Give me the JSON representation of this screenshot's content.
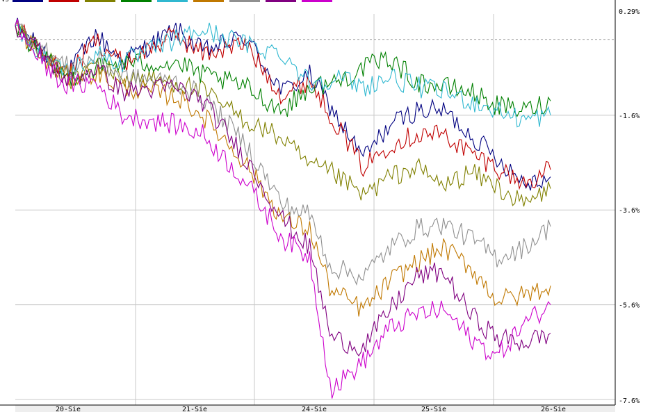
{
  "chart_data": {
    "type": "line",
    "xlabel": "",
    "ylabel": "",
    "y_ticks": [
      0.29,
      -1.6,
      -3.6,
      -5.6,
      -7.6
    ],
    "y_tick_labels": [
      "0.29%",
      "-1.6%",
      "-3.6%",
      "-5.6%",
      "-7.6%"
    ],
    "ylim": [
      -7.6,
      0.29
    ],
    "x_ticks": [
      "20-Sie",
      "21-Sie",
      "24-Sie",
      "25-Sie",
      "26-Sie"
    ],
    "reference_line": 0,
    "grid": true,
    "legend_position": "top-left",
    "legend_first_label": "VS",
    "series": [
      {
        "color": "#000080",
        "final": -2.9,
        "waypoints": [
          [
            0,
            0.3
          ],
          [
            0.05,
            -0.25
          ],
          [
            0.1,
            -0.7
          ],
          [
            0.15,
            0.1
          ],
          [
            0.2,
            -0.45
          ],
          [
            0.3,
            0.2
          ],
          [
            0.35,
            -0.25
          ],
          [
            0.43,
            0.05
          ],
          [
            0.5,
            -1.1
          ],
          [
            0.55,
            -0.75
          ],
          [
            0.59,
            -1.45
          ],
          [
            0.65,
            -2.5
          ],
          [
            0.7,
            -1.8
          ],
          [
            0.75,
            -1.5
          ],
          [
            0.8,
            -1.5
          ],
          [
            0.85,
            -2.0
          ],
          [
            0.9,
            -2.5
          ],
          [
            0.95,
            -3.0
          ],
          [
            1.0,
            -2.9
          ]
        ]
      },
      {
        "color": "#c00000",
        "final": -2.75,
        "waypoints": [
          [
            0,
            0.3
          ],
          [
            0.05,
            -0.3
          ],
          [
            0.1,
            -0.75
          ],
          [
            0.15,
            0.0
          ],
          [
            0.2,
            -0.5
          ],
          [
            0.3,
            0.1
          ],
          [
            0.35,
            -0.3
          ],
          [
            0.43,
            -0.1
          ],
          [
            0.5,
            -1.2
          ],
          [
            0.55,
            -0.85
          ],
          [
            0.59,
            -1.6
          ],
          [
            0.65,
            -2.7
          ],
          [
            0.7,
            -2.2
          ],
          [
            0.75,
            -2.0
          ],
          [
            0.8,
            -2.0
          ],
          [
            0.85,
            -2.4
          ],
          [
            0.9,
            -2.7
          ],
          [
            0.95,
            -3.05
          ],
          [
            1.0,
            -2.75
          ]
        ]
      },
      {
        "color": "#808000",
        "final": -3.15,
        "waypoints": [
          [
            0,
            0.3
          ],
          [
            0.05,
            -0.3
          ],
          [
            0.1,
            -0.9
          ],
          [
            0.15,
            -0.5
          ],
          [
            0.2,
            -0.8
          ],
          [
            0.3,
            -0.9
          ],
          [
            0.35,
            -1.1
          ],
          [
            0.43,
            -1.7
          ],
          [
            0.5,
            -2.1
          ],
          [
            0.55,
            -2.7
          ],
          [
            0.59,
            -2.8
          ],
          [
            0.65,
            -3.3
          ],
          [
            0.7,
            -2.9
          ],
          [
            0.75,
            -2.7
          ],
          [
            0.8,
            -3.1
          ],
          [
            0.85,
            -2.8
          ],
          [
            0.9,
            -3.1
          ],
          [
            0.95,
            -3.5
          ],
          [
            1.0,
            -3.15
          ]
        ]
      },
      {
        "color": "#008000",
        "final": -1.3,
        "waypoints": [
          [
            0,
            0.3
          ],
          [
            0.05,
            -0.4
          ],
          [
            0.1,
            -0.8
          ],
          [
            0.15,
            -0.6
          ],
          [
            0.2,
            -0.5
          ],
          [
            0.3,
            -0.5
          ],
          [
            0.35,
            -0.75
          ],
          [
            0.43,
            -1.0
          ],
          [
            0.5,
            -1.5
          ],
          [
            0.55,
            -1.0
          ],
          [
            0.6,
            -0.9
          ],
          [
            0.65,
            -0.6
          ],
          [
            0.7,
            -0.4
          ],
          [
            0.75,
            -0.9
          ],
          [
            0.8,
            -1.0
          ],
          [
            0.85,
            -1.1
          ],
          [
            0.9,
            -1.4
          ],
          [
            0.95,
            -1.5
          ],
          [
            1.0,
            -1.3
          ]
        ]
      },
      {
        "color": "#30b8d0",
        "final": -1.6,
        "waypoints": [
          [
            0,
            0.3
          ],
          [
            0.05,
            -0.3
          ],
          [
            0.1,
            -0.7
          ],
          [
            0.15,
            -0.3
          ],
          [
            0.2,
            -0.5
          ],
          [
            0.3,
            0.0
          ],
          [
            0.35,
            0.2
          ],
          [
            0.43,
            -0.1
          ],
          [
            0.5,
            -0.3
          ],
          [
            0.55,
            -0.9
          ],
          [
            0.6,
            -0.8
          ],
          [
            0.65,
            -1.0
          ],
          [
            0.7,
            -0.8
          ],
          [
            0.75,
            -1.0
          ],
          [
            0.8,
            -1.1
          ],
          [
            0.85,
            -1.3
          ],
          [
            0.9,
            -1.5
          ],
          [
            0.95,
            -1.7
          ],
          [
            1.0,
            -1.6
          ]
        ]
      },
      {
        "color": "#c07800",
        "final": -5.2,
        "waypoints": [
          [
            0,
            0.3
          ],
          [
            0.05,
            -0.4
          ],
          [
            0.1,
            -0.8
          ],
          [
            0.15,
            -0.7
          ],
          [
            0.2,
            -1.0
          ],
          [
            0.3,
            -1.2
          ],
          [
            0.35,
            -1.6
          ],
          [
            0.43,
            -2.6
          ],
          [
            0.5,
            -3.8
          ],
          [
            0.55,
            -4.0
          ],
          [
            0.59,
            -5.3
          ],
          [
            0.65,
            -5.7
          ],
          [
            0.7,
            -5.1
          ],
          [
            0.75,
            -4.7
          ],
          [
            0.8,
            -4.4
          ],
          [
            0.85,
            -4.8
          ],
          [
            0.9,
            -5.5
          ],
          [
            0.95,
            -5.4
          ],
          [
            1.0,
            -5.2
          ]
        ]
      },
      {
        "color": "#909090",
        "final": -3.95,
        "waypoints": [
          [
            0,
            0.3
          ],
          [
            0.05,
            -0.2
          ],
          [
            0.1,
            -0.6
          ],
          [
            0.15,
            -0.4
          ],
          [
            0.2,
            -0.8
          ],
          [
            0.3,
            -0.9
          ],
          [
            0.35,
            -1.2
          ],
          [
            0.43,
            -2.2
          ],
          [
            0.5,
            -3.5
          ],
          [
            0.55,
            -3.7
          ],
          [
            0.59,
            -4.8
          ],
          [
            0.65,
            -5.0
          ],
          [
            0.7,
            -4.4
          ],
          [
            0.75,
            -4.0
          ],
          [
            0.8,
            -3.9
          ],
          [
            0.85,
            -4.2
          ],
          [
            0.9,
            -4.6
          ],
          [
            0.95,
            -4.4
          ],
          [
            1.0,
            -3.95
          ]
        ]
      },
      {
        "color": "#800080",
        "final": -6.2,
        "waypoints": [
          [
            0,
            0.3
          ],
          [
            0.05,
            -0.3
          ],
          [
            0.1,
            -0.9
          ],
          [
            0.15,
            -0.6
          ],
          [
            0.2,
            -1.1
          ],
          [
            0.3,
            -1.0
          ],
          [
            0.35,
            -1.3
          ],
          [
            0.43,
            -2.5
          ],
          [
            0.5,
            -3.8
          ],
          [
            0.55,
            -4.4
          ],
          [
            0.59,
            -6.3
          ],
          [
            0.65,
            -6.5
          ],
          [
            0.7,
            -5.7
          ],
          [
            0.75,
            -5.0
          ],
          [
            0.8,
            -4.9
          ],
          [
            0.85,
            -5.8
          ],
          [
            0.9,
            -6.3
          ],
          [
            0.95,
            -6.4
          ],
          [
            1.0,
            -6.2
          ]
        ]
      },
      {
        "color": "#cc00cc",
        "final": -5.6,
        "waypoints": [
          [
            0,
            0.3
          ],
          [
            0.05,
            -0.5
          ],
          [
            0.1,
            -1.0
          ],
          [
            0.15,
            -0.9
          ],
          [
            0.2,
            -1.6
          ],
          [
            0.3,
            -1.8
          ],
          [
            0.35,
            -2.0
          ],
          [
            0.43,
            -3.0
          ],
          [
            0.5,
            -4.2
          ],
          [
            0.55,
            -4.6
          ],
          [
            0.59,
            -7.4
          ],
          [
            0.65,
            -6.8
          ],
          [
            0.7,
            -6.1
          ],
          [
            0.75,
            -5.8
          ],
          [
            0.8,
            -5.7
          ],
          [
            0.85,
            -6.3
          ],
          [
            0.9,
            -6.7
          ],
          [
            0.95,
            -6.0
          ],
          [
            1.0,
            -5.6
          ]
        ]
      }
    ]
  }
}
